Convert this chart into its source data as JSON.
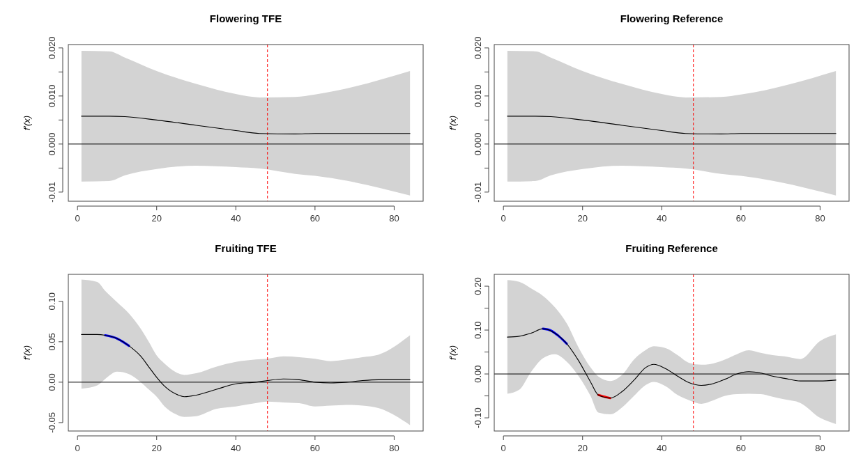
{
  "chart_data": [
    {
      "type": "line",
      "title": "Flowering TFE",
      "ylabel": "f′(x)",
      "xlim": [
        -2.32,
        87.32
      ],
      "xticks": [
        0,
        20,
        40,
        60,
        80
      ],
      "ylim": [
        -0.0119,
        0.0207
      ],
      "yticks": [
        -0.01,
        {
          "value": -0.005,
          "label": null
        },
        {
          "value": 0,
          "label": "0.000"
        },
        {
          "value": 0.005,
          "label": null
        },
        {
          "value": 0.01,
          "label": "0.010"
        },
        {
          "value": 0.015,
          "label": null
        },
        {
          "value": 0.02,
          "label": "0.020"
        }
      ],
      "ref_lines": [
        {
          "axis": "y",
          "value": 0,
          "color": "#000000",
          "line_style": "solid"
        },
        {
          "axis": "x",
          "value": 48,
          "color": "#ff0000",
          "line_style": "dashed"
        }
      ],
      "series": [
        {
          "color": "#000000",
          "x": [
            1,
            8,
            12,
            20,
            30,
            40,
            46,
            55,
            60,
            84
          ],
          "values": [
            0.0058,
            0.0058,
            0.0057,
            0.005,
            0.0039,
            0.0028,
            0.0022,
            0.0021,
            0.0022,
            0.0022
          ],
          "upper": [
            0.0194,
            0.0193,
            0.018,
            0.0152,
            0.0125,
            0.0104,
            0.0097,
            0.0098,
            0.0103,
            0.0152
          ],
          "lower": [
            -0.0078,
            -0.0077,
            -0.0065,
            -0.0052,
            -0.0045,
            -0.0048,
            -0.0051,
            -0.0062,
            -0.0066,
            -0.0107
          ]
        }
      ]
    },
    {
      "type": "line",
      "title": "Flowering Reference",
      "ylabel": "f′(x)",
      "xlim": [
        -2.32,
        87.32
      ],
      "xticks": [
        0,
        20,
        40,
        60,
        80
      ],
      "ylim": [
        -0.0119,
        0.0207
      ],
      "yticks": [
        -0.01,
        {
          "value": -0.005,
          "label": null
        },
        {
          "value": 0,
          "label": "0.000"
        },
        {
          "value": 0.005,
          "label": null
        },
        {
          "value": 0.01,
          "label": "0.010"
        },
        {
          "value": 0.015,
          "label": null
        },
        {
          "value": 0.02,
          "label": "0.020"
        }
      ],
      "ref_lines": [
        {
          "axis": "y",
          "value": 0,
          "color": "#000000",
          "line_style": "solid"
        },
        {
          "axis": "x",
          "value": 48,
          "color": "#ff0000",
          "line_style": "dashed"
        }
      ],
      "series": [
        {
          "color": "#000000",
          "x": [
            1,
            8,
            12,
            20,
            30,
            40,
            46,
            55,
            60,
            84
          ],
          "values": [
            0.0058,
            0.0058,
            0.0057,
            0.005,
            0.0039,
            0.0028,
            0.0022,
            0.0021,
            0.0022,
            0.0022
          ],
          "upper": [
            0.0194,
            0.0193,
            0.018,
            0.0152,
            0.0125,
            0.0104,
            0.0097,
            0.0098,
            0.0103,
            0.0152
          ],
          "lower": [
            -0.0078,
            -0.0077,
            -0.0065,
            -0.0052,
            -0.0045,
            -0.0048,
            -0.0051,
            -0.0062,
            -0.0066,
            -0.0107
          ]
        }
      ]
    },
    {
      "type": "line",
      "title": "Fruiting TFE",
      "ylabel": "f′(x)",
      "xlim": [
        -2.32,
        87.32
      ],
      "xticks": [
        0,
        20,
        40,
        60,
        80
      ],
      "ylim": [
        -0.0604,
        0.1334
      ],
      "yticks": [
        -0.05,
        {
          "value": 0,
          "label": "0.00"
        },
        0.05,
        {
          "value": 0.1,
          "label": "0.10"
        }
      ],
      "ref_lines": [
        {
          "axis": "y",
          "value": 0,
          "color": "#000000",
          "line_style": "solid"
        },
        {
          "axis": "x",
          "value": 48,
          "color": "#ff0000",
          "line_style": "dashed"
        }
      ],
      "series": [
        {
          "color": "#000000",
          "x": [
            1,
            5,
            7,
            10,
            13,
            16,
            18,
            20,
            22,
            25,
            27,
            30,
            35,
            40,
            45,
            48,
            52,
            56,
            60,
            64,
            68,
            72,
            76,
            84
          ],
          "values": [
            0.059,
            0.059,
            0.058,
            0.054,
            0.045,
            0.032,
            0.019,
            0.006,
            -0.005,
            -0.015,
            -0.018,
            -0.016,
            -0.009,
            -0.002,
            0.0,
            0.002,
            0.004,
            0.003,
            0.0,
            -0.001,
            0.0,
            0.002,
            0.003,
            0.003
          ],
          "upper": [
            0.127,
            0.124,
            0.113,
            0.099,
            0.085,
            0.066,
            0.05,
            0.033,
            0.023,
            0.012,
            0.009,
            0.011,
            0.019,
            0.025,
            0.028,
            0.029,
            0.032,
            0.031,
            0.029,
            0.026,
            0.028,
            0.031,
            0.034,
            0.058
          ],
          "lower": [
            -0.008,
            -0.004,
            0.004,
            0.013,
            0.01,
            0.0,
            -0.009,
            -0.018,
            -0.03,
            -0.04,
            -0.043,
            -0.042,
            -0.033,
            -0.03,
            -0.026,
            -0.024,
            -0.025,
            -0.026,
            -0.03,
            -0.029,
            -0.028,
            -0.029,
            -0.032,
            -0.053
          ]
        },
        {
          "color": "#0000ff",
          "x": [
            7,
            10,
            13
          ],
          "values": [
            0.058,
            0.054,
            0.045
          ]
        }
      ]
    },
    {
      "type": "line",
      "title": "Fruiting Reference",
      "ylabel": "f′(x)",
      "xlim": [
        -2.32,
        87.32
      ],
      "xticks": [
        0,
        20,
        40,
        60,
        80
      ],
      "ylim": [
        -0.13,
        0.227
      ],
      "yticks": [
        {
          "value": -0.1,
          "label": "-0.10"
        },
        {
          "value": -0.05,
          "label": null
        },
        {
          "value": 0,
          "label": "0.00"
        },
        {
          "value": 0.05,
          "label": null
        },
        {
          "value": 0.1,
          "label": "0.10"
        },
        {
          "value": 0.15,
          "label": null
        },
        {
          "value": 0.2,
          "label": "0.20"
        }
      ],
      "ref_lines": [
        {
          "axis": "y",
          "value": 0,
          "color": "#000000",
          "line_style": "solid"
        },
        {
          "axis": "x",
          "value": 48,
          "color": "#ff0000",
          "line_style": "dashed"
        }
      ],
      "series": [
        {
          "color": "#000000",
          "x": [
            1,
            4,
            7,
            10,
            13,
            16,
            19,
            22,
            24,
            27,
            30,
            33,
            36,
            38,
            41,
            44,
            47,
            50,
            53,
            56,
            59,
            62,
            65,
            68,
            71,
            75,
            80,
            84
          ],
          "values": [
            0.084,
            0.086,
            0.093,
            0.103,
            0.093,
            0.069,
            0.03,
            -0.018,
            -0.048,
            -0.055,
            -0.04,
            -0.014,
            0.015,
            0.022,
            0.012,
            -0.005,
            -0.02,
            -0.026,
            -0.022,
            -0.012,
            0.0,
            0.005,
            0.002,
            -0.005,
            -0.01,
            -0.016,
            -0.016,
            -0.014
          ],
          "upper": [
            0.214,
            0.21,
            0.195,
            0.178,
            0.152,
            0.115,
            0.06,
            0.015,
            -0.006,
            -0.016,
            -0.002,
            0.033,
            0.055,
            0.063,
            0.059,
            0.043,
            0.025,
            0.021,
            0.024,
            0.033,
            0.045,
            0.054,
            0.048,
            0.043,
            0.04,
            0.034,
            0.075,
            0.09
          ],
          "lower": [
            -0.045,
            -0.036,
            0.005,
            0.036,
            0.045,
            0.028,
            -0.005,
            -0.05,
            -0.088,
            -0.092,
            -0.076,
            -0.05,
            -0.025,
            -0.018,
            -0.028,
            -0.048,
            -0.06,
            -0.068,
            -0.06,
            -0.05,
            -0.046,
            -0.045,
            -0.046,
            -0.052,
            -0.058,
            -0.066,
            -0.1,
            -0.114
          ]
        },
        {
          "color": "#0000ff",
          "x": [
            10,
            12,
            14,
            16
          ],
          "values": [
            0.103,
            0.099,
            0.086,
            0.069
          ]
        },
        {
          "color": "#ff0000",
          "x": [
            24,
            26,
            27
          ],
          "values": [
            -0.048,
            -0.053,
            -0.055
          ]
        }
      ]
    }
  ]
}
